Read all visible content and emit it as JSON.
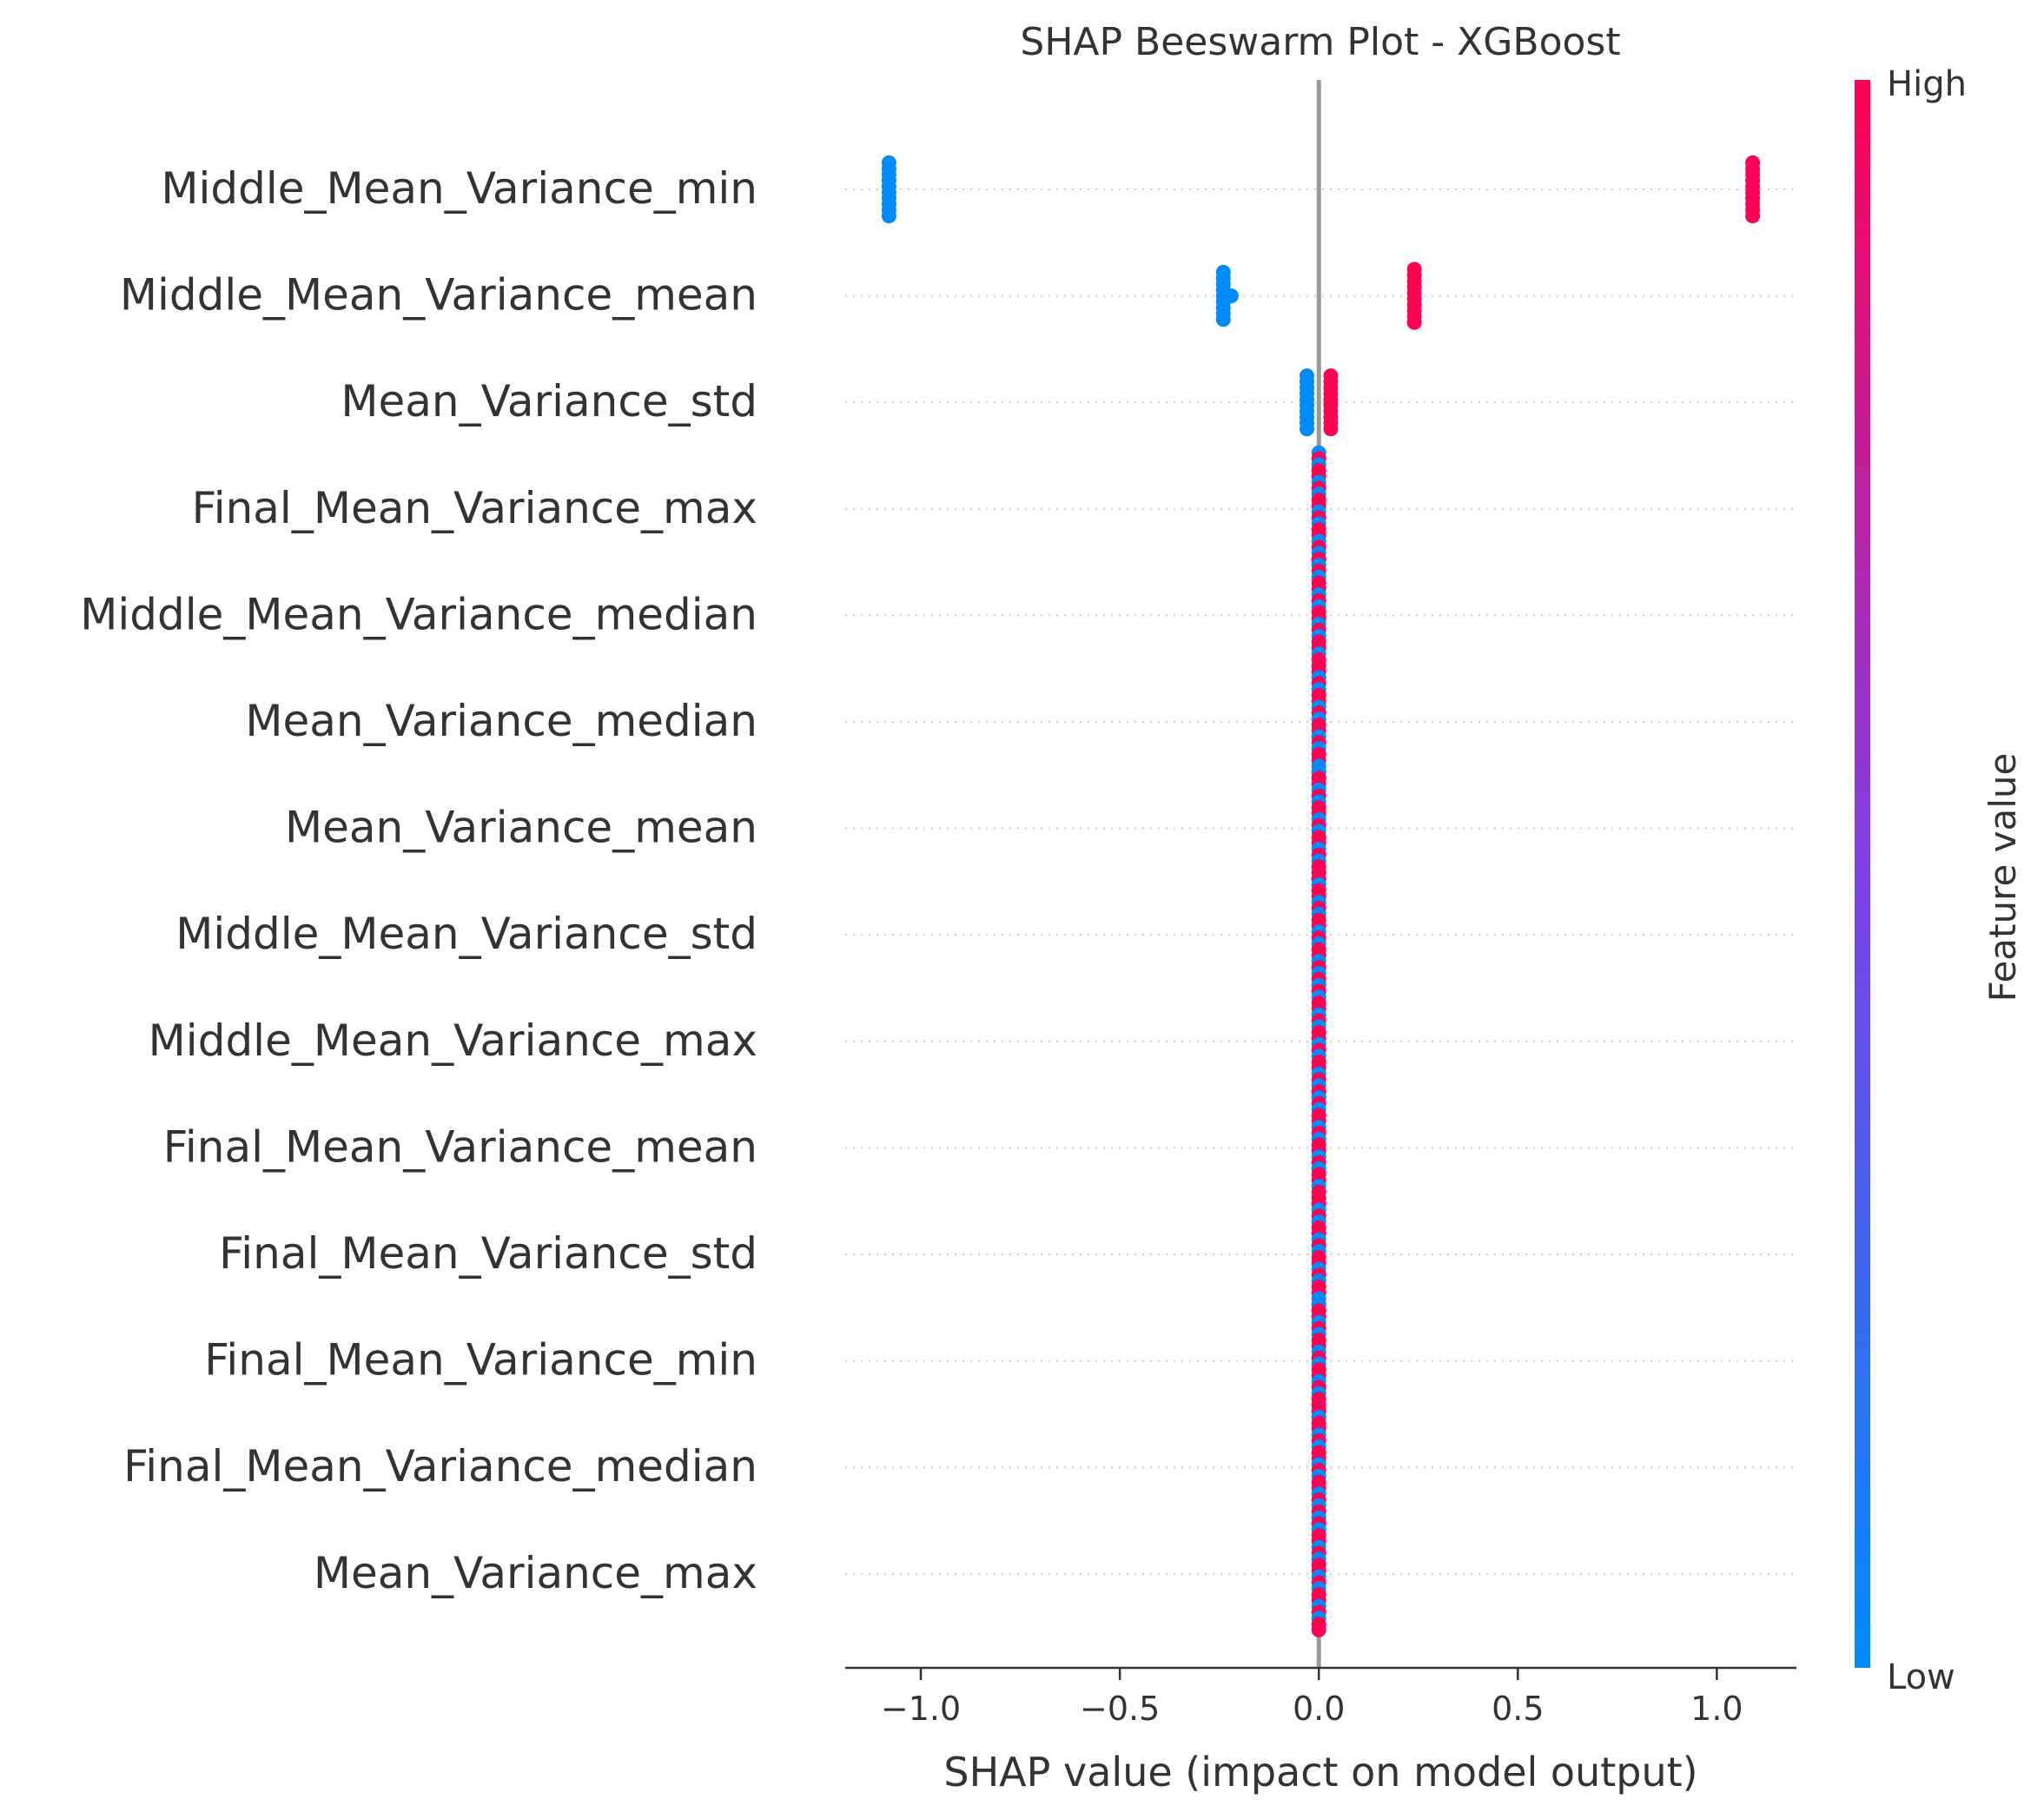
{
  "chart_data": {
    "type": "scatter",
    "title": "SHAP Beeswarm Plot - XGBoost",
    "xlabel": "SHAP value (impact on model output)",
    "xlim": [
      -1.19,
      1.2
    ],
    "xticks": [
      -1.0,
      -0.5,
      0.0,
      0.5,
      1.0
    ],
    "xtick_labels": [
      "−1.0",
      "−0.5",
      "0.0",
      "0.5",
      "1.0"
    ],
    "colorbar": {
      "label": "Feature value",
      "high_label": "High",
      "low_label": "Low",
      "high_color": "#ff0052",
      "mid_color": "#7d40e8",
      "low_color": "#008bfa"
    },
    "features": [
      {
        "name": "Middle_Mean_Variance_min",
        "points": [
          {
            "x": -1.08,
            "n": 10,
            "c": 0
          },
          {
            "x": 1.09,
            "n": 10,
            "c": 1
          }
        ]
      },
      {
        "name": "Middle_Mean_Variance_mean",
        "points": [
          {
            "x": -0.24,
            "n": 9,
            "c": 0
          },
          {
            "x": -0.22,
            "n": 1,
            "c": 0
          },
          {
            "x": 0.24,
            "n": 10,
            "c": 1
          }
        ]
      },
      {
        "name": "Mean_Variance_std",
        "points": [
          {
            "x": -0.03,
            "n": 10,
            "c": 0
          },
          {
            "x": 0.03,
            "n": 10,
            "c": 1
          }
        ]
      },
      {
        "name": "Final_Mean_Variance_max",
        "points": [
          {
            "x": 0.0,
            "n": 20,
            "c": "mix"
          }
        ]
      },
      {
        "name": "Middle_Mean_Variance_median",
        "points": [
          {
            "x": 0.0,
            "n": 20,
            "c": "mix"
          }
        ]
      },
      {
        "name": "Mean_Variance_median",
        "points": [
          {
            "x": 0.0,
            "n": 20,
            "c": "mix"
          }
        ]
      },
      {
        "name": "Mean_Variance_mean",
        "points": [
          {
            "x": 0.0,
            "n": 20,
            "c": "mix"
          }
        ]
      },
      {
        "name": "Middle_Mean_Variance_std",
        "points": [
          {
            "x": 0.0,
            "n": 20,
            "c": "mix"
          }
        ]
      },
      {
        "name": "Middle_Mean_Variance_max",
        "points": [
          {
            "x": 0.0,
            "n": 20,
            "c": "mix"
          }
        ]
      },
      {
        "name": "Final_Mean_Variance_mean",
        "points": [
          {
            "x": 0.0,
            "n": 20,
            "c": "mix"
          }
        ]
      },
      {
        "name": "Final_Mean_Variance_std",
        "points": [
          {
            "x": 0.0,
            "n": 20,
            "c": "mix"
          }
        ]
      },
      {
        "name": "Final_Mean_Variance_min",
        "points": [
          {
            "x": 0.0,
            "n": 20,
            "c": "mix"
          }
        ]
      },
      {
        "name": "Final_Mean_Variance_median",
        "points": [
          {
            "x": 0.0,
            "n": 20,
            "c": "mix"
          }
        ]
      },
      {
        "name": "Mean_Variance_max",
        "points": [
          {
            "x": 0.0,
            "n": 20,
            "c": "mix"
          }
        ]
      }
    ]
  }
}
